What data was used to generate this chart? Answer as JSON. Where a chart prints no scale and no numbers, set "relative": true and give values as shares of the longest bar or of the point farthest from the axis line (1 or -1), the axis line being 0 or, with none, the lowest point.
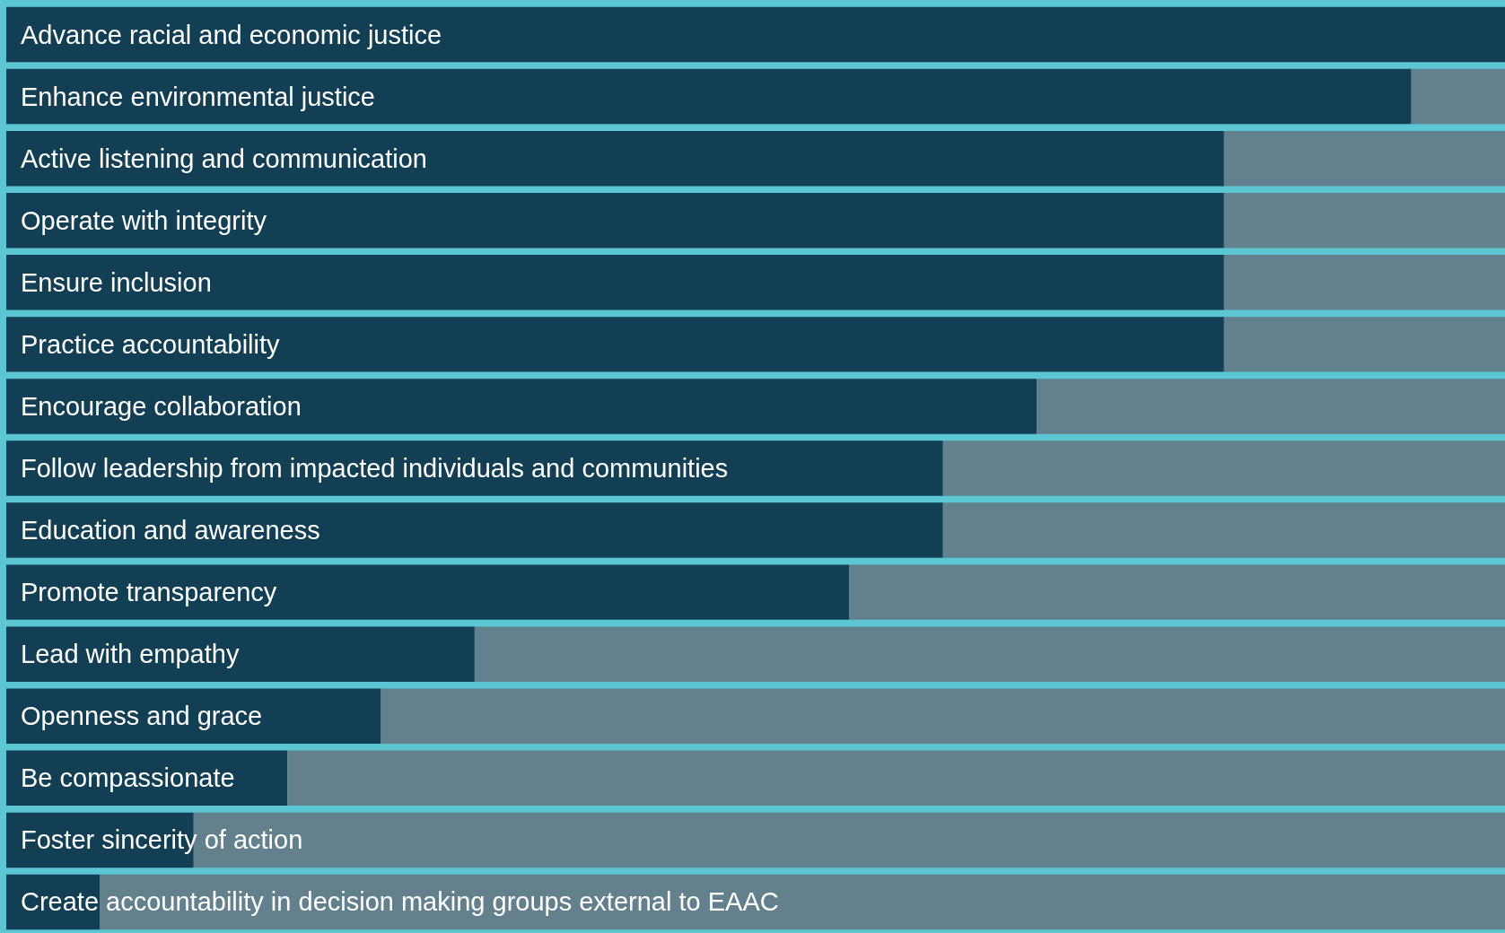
{
  "chart_data": {
    "type": "bar",
    "orientation": "horizontal",
    "relative": true,
    "stacked": true,
    "categories": [
      "Advance racial and economic justice",
      "Enhance environmental justice",
      "Active listening and communication",
      "Operate with integrity",
      "Ensure inclusion",
      "Practice accountability",
      "Encourage collaboration",
      "Follow leadership from impacted individuals and communities",
      "Education and awareness",
      "Promote transparency",
      "Lead with empathy",
      "Openness and grace",
      "Be compassionate",
      "Foster sincerity of action",
      "Create accountability in decision making groups external to EAAC"
    ],
    "series": [
      {
        "color": "#123f53",
        "values": [
          1,
          0.9375,
          0.8125,
          0.8125,
          0.8125,
          0.8125,
          0.6875,
          0.625,
          0.625,
          0.5625,
          0.3125,
          0.25,
          0.1875,
          0.125,
          0.0625
        ]
      },
      {
        "color": "#62818d",
        "values": [
          0,
          0.0625,
          0.1875,
          0.1875,
          0.1875,
          0.1875,
          0.3125,
          0.375,
          0.375,
          0.4375,
          0.6875,
          0.75,
          0.8125,
          0.875,
          0.9375
        ]
      }
    ]
  }
}
